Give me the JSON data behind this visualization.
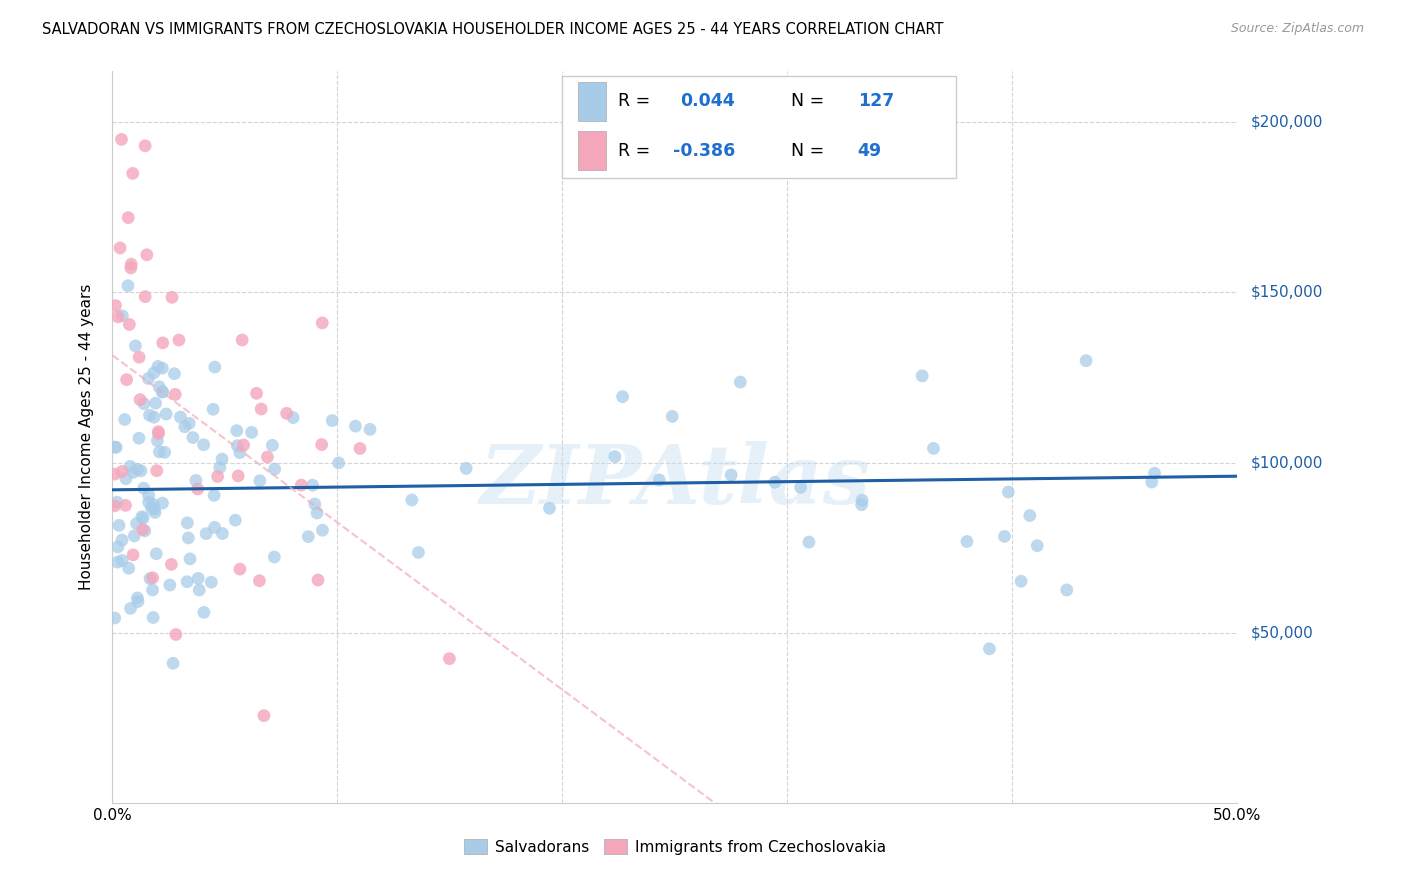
{
  "title": "SALVADORAN VS IMMIGRANTS FROM CZECHOSLOVAKIA HOUSEHOLDER INCOME AGES 25 - 44 YEARS CORRELATION CHART",
  "source": "Source: ZipAtlas.com",
  "ylabel": "Householder Income Ages 25 - 44 years",
  "ytick_labels": [
    "$50,000",
    "$100,000",
    "$150,000",
    "$200,000"
  ],
  "ytick_values": [
    50000,
    100000,
    150000,
    200000
  ],
  "ylim": [
    0,
    215000
  ],
  "xlim": [
    0.0,
    0.5
  ],
  "watermark": "ZIPAtlas",
  "blue_color": "#a8cce8",
  "pink_color": "#f4a7bb",
  "blue_line_color": "#1f5fa6",
  "pink_line_color": "#e05080",
  "pink_dash_color": "#f4a7bb",
  "label_color": "#1f5fa6",
  "r_val_color": "#1f6fcc",
  "n_val_color": "#1f6fcc",
  "salvadorans_R": 0.044,
  "salvadorans_N": 127,
  "czech_R": -0.386,
  "czech_N": 49
}
